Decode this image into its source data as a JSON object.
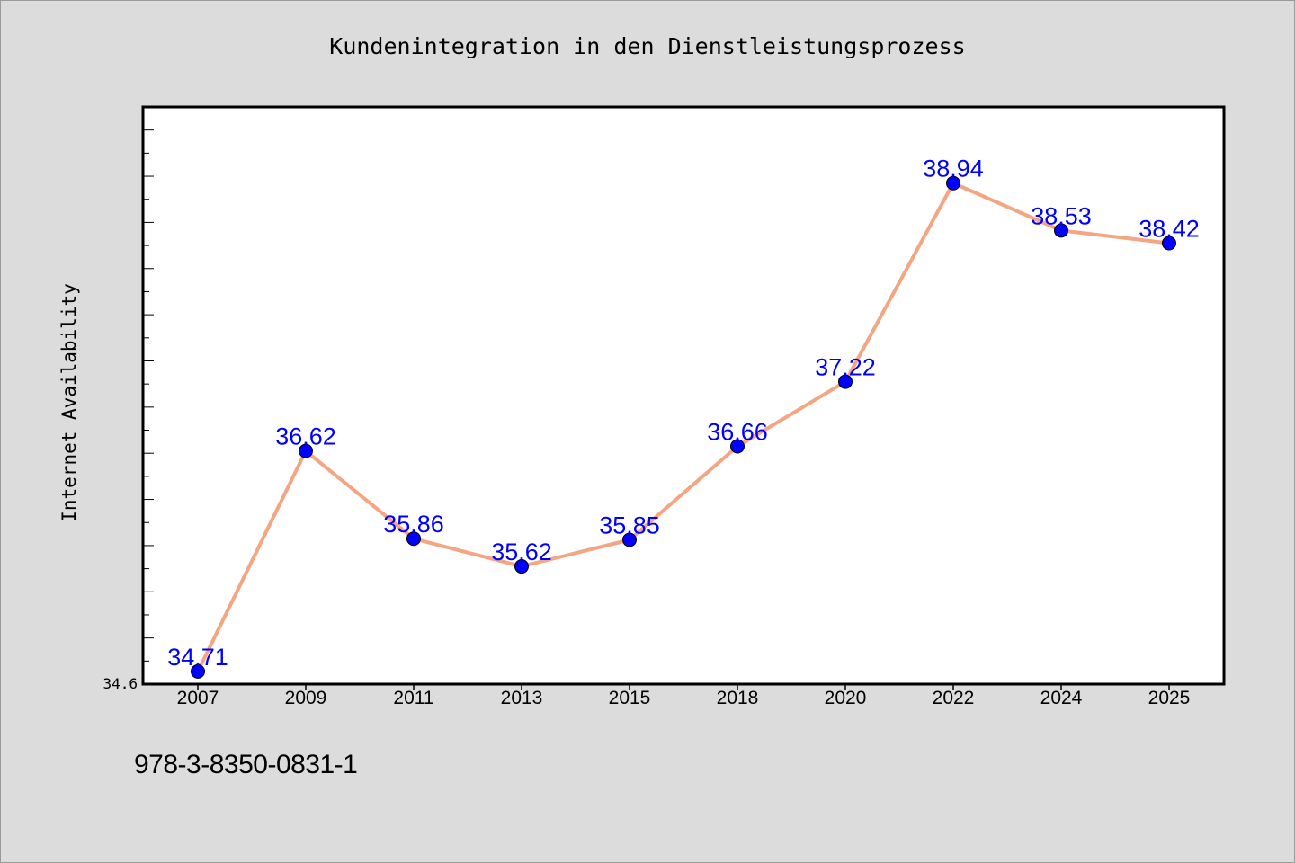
{
  "chart_data": {
    "type": "line",
    "title": "Kundenintegration in den Dienstleistungsprozess",
    "xlabel": "",
    "ylabel": "Internet Availability",
    "categories": [
      "2007",
      "2009",
      "2011",
      "2013",
      "2015",
      "2018",
      "2020",
      "2022",
      "2024",
      "2025"
    ],
    "series": [
      {
        "values": [
          34.71,
          36.62,
          35.86,
          35.62,
          35.85,
          36.66,
          37.22,
          38.94,
          38.53,
          38.42
        ],
        "data_labels": [
          "34.71",
          "36.62",
          "35.86",
          "35.62",
          "35.85",
          "36.66",
          "37.22",
          "38.94",
          "38.53",
          "38.42"
        ]
      }
    ],
    "ylim": [
      34.6,
      39.6
    ],
    "y_tick_labels": [
      "34.6"
    ],
    "grid": false,
    "legend": "none",
    "colors": {
      "line": "#f4a582",
      "marker": "#0000ff",
      "data_label": "#0000ff",
      "background": "#dcdcdc",
      "plot_background": "#ffffff"
    }
  },
  "footer": {
    "isbn": "978-3-8350-0831-1"
  }
}
